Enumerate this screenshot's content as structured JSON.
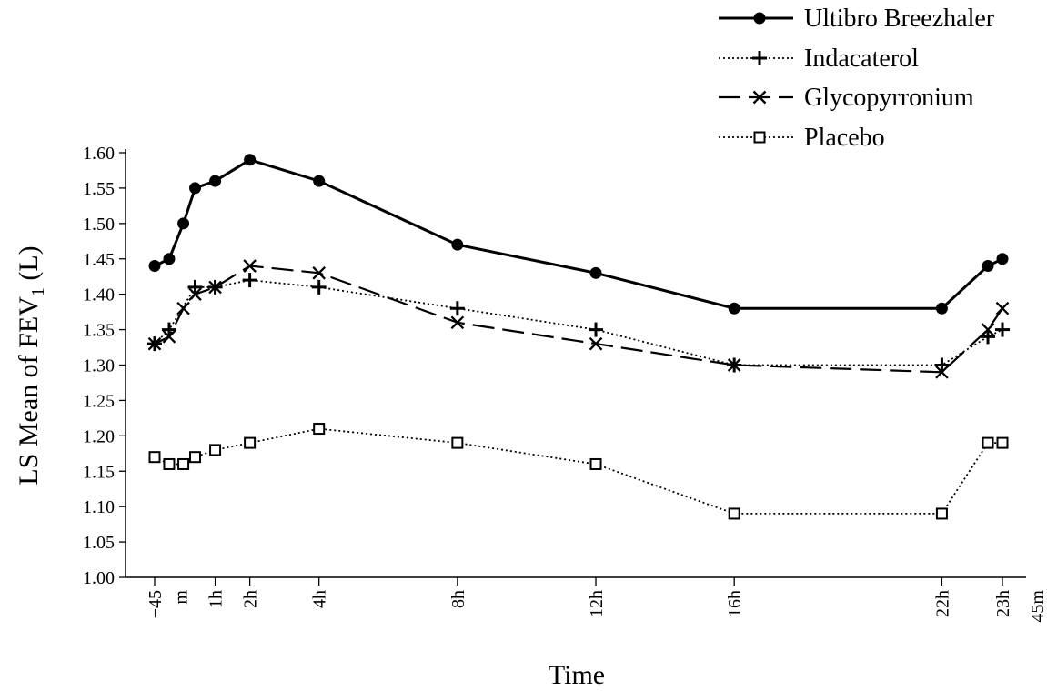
{
  "chart_data": {
    "type": "line",
    "xlabel": "Time",
    "ylabel_main": "LS Mean of FEV",
    "ylabel_sub": "1",
    "ylabel_tail": " (L)",
    "ylim": [
      1.0,
      1.6
    ],
    "yticks": [
      1.0,
      1.05,
      1.1,
      1.15,
      1.2,
      1.25,
      1.3,
      1.35,
      1.4,
      1.45,
      1.5,
      1.55,
      1.6
    ],
    "ytick_labels": [
      "1.00",
      "1.05",
      "1.10",
      "1.15",
      "1.20",
      "1.25",
      "1.30",
      "1.35",
      "1.40",
      "1.45",
      "1.50",
      "1.55",
      "1.60"
    ],
    "xlim_hours": [
      -1.25,
      24.5
    ],
    "xtick_marks_hours": [
      -0.75,
      1,
      2,
      4,
      8,
      12,
      16,
      22,
      23.75
    ],
    "xtick_labels": [
      {
        "text": "−45",
        "hours": -0.75
      },
      {
        "text": "m",
        "hours": 0
      },
      {
        "text": "1h",
        "hours": 1
      },
      {
        "text": "2h",
        "hours": 2
      },
      {
        "text": "4h",
        "hours": 4
      },
      {
        "text": "8h",
        "hours": 8
      },
      {
        "text": "12h",
        "hours": 12
      },
      {
        "text": "16h",
        "hours": 16
      },
      {
        "text": "22h",
        "hours": 22
      },
      {
        "text": "23h",
        "hours": 23.75
      },
      {
        "text": "45m",
        "hours": 24.75
      }
    ],
    "x_hours": [
      -0.75,
      -0.33,
      0.08,
      0.42,
      1,
      2,
      4,
      8,
      12,
      16,
      22,
      23.33,
      23.75
    ],
    "legend_position": "top-right",
    "series": [
      {
        "name": "Ultibro Breezhaler",
        "marker": "filled-circle",
        "dash": "solid",
        "values": [
          1.44,
          1.45,
          1.5,
          1.55,
          1.56,
          1.59,
          1.56,
          1.47,
          1.43,
          1.38,
          1.38,
          1.44,
          1.45
        ]
      },
      {
        "name": "Indacaterol",
        "marker": "plus",
        "dash": "dotted",
        "values": [
          1.33,
          1.35,
          null,
          1.41,
          1.41,
          1.42,
          1.41,
          1.38,
          1.35,
          1.3,
          1.3,
          1.34,
          1.35
        ]
      },
      {
        "name": "Glycopyrronium",
        "marker": "x",
        "dash": "long-dash",
        "values": [
          1.33,
          1.34,
          1.38,
          1.4,
          1.41,
          1.44,
          1.43,
          1.36,
          1.33,
          1.3,
          1.29,
          1.35,
          1.38
        ]
      },
      {
        "name": "Placebo",
        "marker": "open-square",
        "dash": "dotted",
        "values": [
          1.17,
          1.16,
          1.16,
          1.17,
          1.18,
          1.19,
          1.21,
          1.19,
          1.16,
          1.09,
          1.09,
          1.19,
          1.19
        ]
      }
    ]
  }
}
